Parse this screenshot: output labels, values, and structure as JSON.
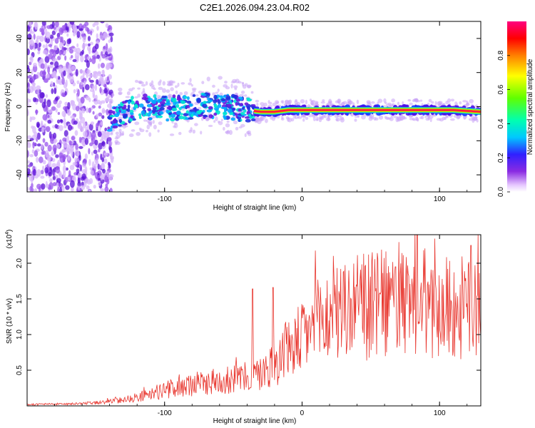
{
  "title": "C2E1.2026.094.23.04.R02",
  "chart_data": [
    {
      "type": "heatmap",
      "name": "spectrogram",
      "xlabel": "Height of straight line (km)",
      "ylabel": "Frequency (Hz)",
      "xlim": [
        -200,
        130
      ],
      "ylim": [
        -50,
        50
      ],
      "xticks": [
        -100,
        0,
        100
      ],
      "yticks": [
        -40,
        -20,
        0,
        20,
        40
      ],
      "ridge": {
        "description_points_x": [
          -140,
          -120,
          -100,
          -80,
          -60,
          -40,
          -30,
          -20,
          -10,
          0,
          20,
          50,
          90,
          110,
          130
        ],
        "description_points_y": [
          -8,
          0,
          -1,
          0,
          1,
          -2,
          -3,
          -3,
          -2,
          -2,
          -2,
          -2,
          -2,
          -2,
          -3
        ]
      },
      "colorbar": {
        "label": "Normalized spectral amplitude",
        "range": [
          0,
          1
        ],
        "ticks": [
          0.0,
          0.2,
          0.4,
          0.6,
          0.8
        ],
        "tick_labels": [
          "0.0",
          "0.2",
          "0.4",
          "0.6",
          "0.8"
        ]
      }
    },
    {
      "type": "line",
      "name": "snr",
      "xlabel": "Height of straight line (km)",
      "ylabel": "SNR (10 * v/v)",
      "scale_label": "(x10",
      "scale_exp": "4",
      "scale_close": ")",
      "xlim": [
        -200,
        130
      ],
      "ylim": [
        0,
        2.4
      ],
      "xticks": [
        -100,
        0,
        100
      ],
      "yticks": [
        0.5,
        1.0,
        1.5,
        2.0
      ],
      "ytick_labels": [
        "0.5",
        "1.0",
        "1.5",
        "2.0"
      ],
      "color": "#e8342c",
      "envelope_x": [
        -200,
        -160,
        -140,
        -120,
        -100,
        -80,
        -60,
        -40,
        -30,
        -20,
        -10,
        0,
        10,
        30,
        60,
        80,
        100,
        120,
        130
      ],
      "envelope_y": [
        0.02,
        0.03,
        0.06,
        0.12,
        0.22,
        0.3,
        0.35,
        0.4,
        0.45,
        0.6,
        0.8,
        0.95,
        1.15,
        1.35,
        1.42,
        1.4,
        1.38,
        1.35,
        1.35
      ],
      "spikes": [
        {
          "x": -36,
          "y": 1.64
        },
        {
          "x": -21,
          "y": 1.66
        },
        {
          "x": 128,
          "y": 2.4
        },
        {
          "x": 123,
          "y": 2.25
        },
        {
          "x": 68,
          "y": 1.95
        }
      ]
    }
  ]
}
